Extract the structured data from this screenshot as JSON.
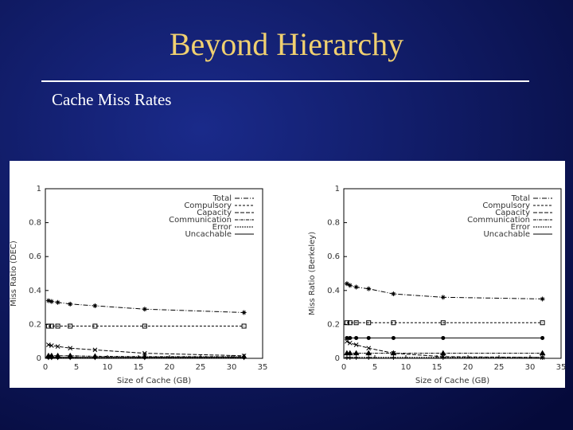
{
  "title": "Beyond Hierarchy",
  "subtitle": "Cache Miss Rates",
  "chart_data": [
    {
      "type": "line",
      "xlabel": "Size of Cache (GB)",
      "ylabel": "Miss Ratio (DEC)",
      "x": [
        0.5,
        1,
        2,
        4,
        8,
        16,
        32
      ],
      "xlim": [
        0,
        35
      ],
      "xticks": [
        0,
        5,
        10,
        15,
        20,
        25,
        30,
        35
      ],
      "ylim": [
        0,
        1
      ],
      "yticks": [
        0,
        0.2,
        0.4,
        0.6,
        0.8,
        1
      ],
      "legend": "upper right",
      "series": [
        {
          "name": "Total",
          "color": "#000000",
          "values": [
            0.34,
            0.335,
            0.33,
            0.32,
            0.31,
            0.29,
            0.27
          ]
        },
        {
          "name": "Compulsory",
          "color": "#000000",
          "values": [
            0.19,
            0.19,
            0.19,
            0.19,
            0.19,
            0.19,
            0.19
          ]
        },
        {
          "name": "Capacity",
          "color": "#000000",
          "values": [
            0.08,
            0.075,
            0.07,
            0.06,
            0.05,
            0.03,
            0.015
          ]
        },
        {
          "name": "Communication",
          "color": "#000000",
          "values": [
            0.015,
            0.015,
            0.015,
            0.015,
            0.012,
            0.01,
            0.01
          ]
        },
        {
          "name": "Error",
          "color": "#000000",
          "values": [
            0.004,
            0.004,
            0.004,
            0.004,
            0.004,
            0.004,
            0.004
          ]
        },
        {
          "name": "Uncachable",
          "color": "#000000",
          "values": [
            0.006,
            0.006,
            0.006,
            0.006,
            0.006,
            0.006,
            0.006
          ]
        }
      ]
    },
    {
      "type": "line",
      "xlabel": "Size of Cache (GB)",
      "ylabel": "Miss Ratio (Berkeley)",
      "x": [
        0.5,
        1,
        2,
        4,
        8,
        16,
        32
      ],
      "xlim": [
        0,
        35
      ],
      "xticks": [
        0,
        5,
        10,
        15,
        20,
        25,
        30,
        35
      ],
      "ylim": [
        0,
        1
      ],
      "yticks": [
        0,
        0.2,
        0.4,
        0.6,
        0.8,
        1
      ],
      "legend": "upper right",
      "series": [
        {
          "name": "Total",
          "color": "#000000",
          "values": [
            0.44,
            0.43,
            0.42,
            0.41,
            0.38,
            0.36,
            0.35
          ]
        },
        {
          "name": "Compulsory",
          "color": "#000000",
          "values": [
            0.21,
            0.21,
            0.21,
            0.21,
            0.21,
            0.21,
            0.21
          ]
        },
        {
          "name": "Capacity",
          "color": "#000000",
          "values": [
            0.1,
            0.09,
            0.08,
            0.06,
            0.03,
            0.01,
            0.005
          ]
        },
        {
          "name": "Communication",
          "color": "#000000",
          "values": [
            0.03,
            0.03,
            0.03,
            0.03,
            0.03,
            0.03,
            0.03
          ]
        },
        {
          "name": "Error",
          "color": "#000000",
          "values": [
            0.005,
            0.005,
            0.005,
            0.005,
            0.005,
            0.005,
            0.005
          ]
        },
        {
          "name": "Uncachable",
          "color": "#000000",
          "values": [
            0.12,
            0.12,
            0.12,
            0.12,
            0.12,
            0.12,
            0.12
          ]
        }
      ]
    }
  ]
}
